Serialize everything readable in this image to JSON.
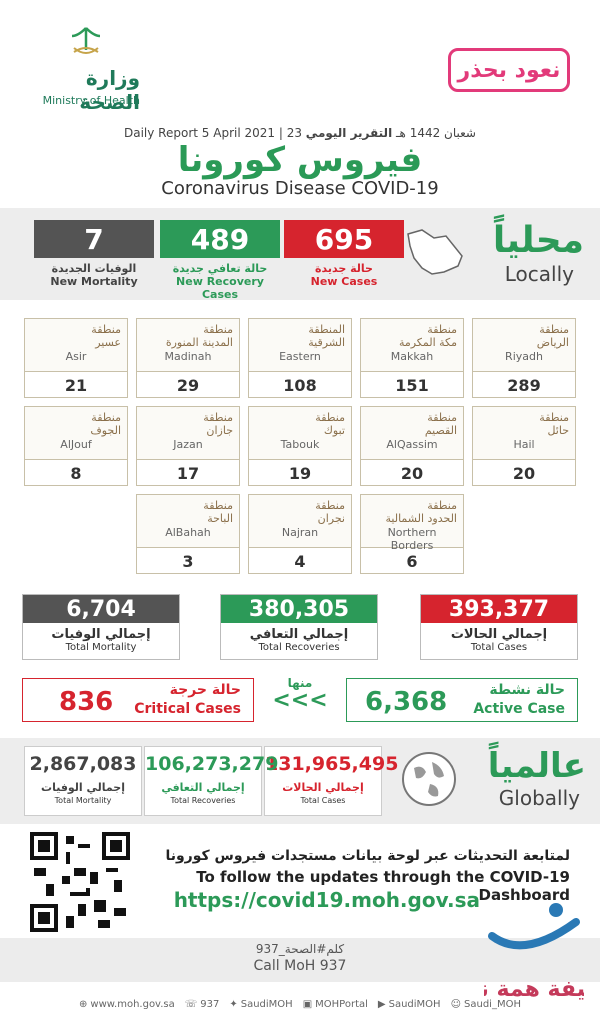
{
  "header": {
    "moh_ar": "وزارة الصحة",
    "moh_en": "Ministry of Health",
    "badge": "نعود بحذر",
    "daily_report_en": "Daily Report",
    "date_en": "5 April 2021",
    "date_hijri": "23 شعبان 1442 هـ",
    "daily_report_ar": "التقرير اليومي",
    "title_ar": "فيروس كورونا",
    "title_en": "Coronavirus Disease COVID-19"
  },
  "locally": {
    "title_ar": "محلياً",
    "title_en": "Locally",
    "new_cases": {
      "value": "695",
      "label_ar": "حالة جديدة",
      "label_en": "New Cases",
      "color": "#d6242e"
    },
    "new_recovery": {
      "value": "489",
      "label_ar": "حالة تعافي جديدة",
      "label_en": "New Recovery Cases",
      "color": "#2c9a58"
    },
    "new_mortality": {
      "value": "7",
      "label_ar": "الوفيات الجديدة",
      "label_en": "New Mortality",
      "color": "#545454"
    }
  },
  "regions": [
    {
      "label_ar_1": "منطقة",
      "label_ar_2": "الرياض",
      "name_en": "Riyadh",
      "value": "289"
    },
    {
      "label_ar_1": "منطقة",
      "label_ar_2": "مكة المكرمة",
      "name_en": "Makkah",
      "value": "151"
    },
    {
      "label_ar_1": "المنطقة",
      "label_ar_2": "الشرقية",
      "name_en": "Eastern",
      "value": "108"
    },
    {
      "label_ar_1": "منطقة",
      "label_ar_2": "المدينة المنورة",
      "name_en": "Madinah",
      "value": "29"
    },
    {
      "label_ar_1": "منطقة",
      "label_ar_2": "عسير",
      "name_en": "Asir",
      "value": "21"
    },
    {
      "label_ar_1": "منطقة",
      "label_ar_2": "حائل",
      "name_en": "Hail",
      "value": "20"
    },
    {
      "label_ar_1": "منطقة",
      "label_ar_2": "القصيم",
      "name_en": "AlQassim",
      "value": "20"
    },
    {
      "label_ar_1": "منطقة",
      "label_ar_2": "تبوك",
      "name_en": "Tabouk",
      "value": "19"
    },
    {
      "label_ar_1": "منطقة",
      "label_ar_2": "جازان",
      "name_en": "Jazan",
      "value": "17"
    },
    {
      "label_ar_1": "منطقة",
      "label_ar_2": "الجوف",
      "name_en": "AlJouf",
      "value": "8"
    },
    {
      "label_ar_1": "منطقة",
      "label_ar_2": "الحدود الشمالية",
      "name_en": "Northern Borders",
      "value": "6"
    },
    {
      "label_ar_1": "منطقة",
      "label_ar_2": "نجران",
      "name_en": "Najran",
      "value": "4"
    },
    {
      "label_ar_1": "منطقة",
      "label_ar_2": "الباحة",
      "name_en": "AlBahah",
      "value": "3"
    }
  ],
  "totals": {
    "cases": {
      "value": "393,377",
      "label_ar": "إجمالي الحالات",
      "label_en": "Total Cases"
    },
    "recoveries": {
      "value": "380,305",
      "label_ar": "إجمالي التعافي",
      "label_en": "Total Recoveries"
    },
    "mortality": {
      "value": "6,704",
      "label_ar": "إجمالي الوفيات",
      "label_en": "Total Mortality"
    }
  },
  "active": {
    "value": "6,368",
    "label_ar": "حالة نشطة",
    "label_en": "Active Case"
  },
  "critical": {
    "value": "836",
    "label_ar": "حالة حرجة",
    "label_en": "Critical Cases"
  },
  "of_which": {
    "label_ar": "منها",
    "arrows": "<<<"
  },
  "globally": {
    "title_ar": "عالمياً",
    "title_en": "Globally",
    "cases": {
      "value": "131,965,495",
      "label_ar": "إجمالي الحالات",
      "label_en": "Total Cases"
    },
    "recoveries": {
      "value": "106,273,279",
      "label_ar": "إجمالي التعافي",
      "label_en": "Total Recoveries"
    },
    "mortality": {
      "value": "2,867,083",
      "label_ar": "إجمالي الوفيات",
      "label_en": "Total Mortality"
    }
  },
  "follow": {
    "text_ar": "لمتابعة التحديثات عبر لوحة بيانات مستجدات فيروس كورونا",
    "text_en": "To follow the updates through the COVID-19 Dashboard",
    "url": "https://covid19.moh.gov.sa"
  },
  "call": {
    "text_ar": "كلم#الصحة_937",
    "text_en": "Call MoH 937"
  },
  "footer": {
    "website": "www.moh.gov.sa",
    "phone": "937",
    "twitter": "SaudiMOH",
    "portal": "MOHPortal",
    "youtube": "SaudiMOH",
    "snapchat": "Saudi_MOH"
  },
  "watermark": {
    "text": "صحيفة همة نيوز"
  },
  "colors": {
    "green": "#2c9a58",
    "red": "#d6242e",
    "gray": "#545454",
    "pink": "#e23a7a"
  }
}
